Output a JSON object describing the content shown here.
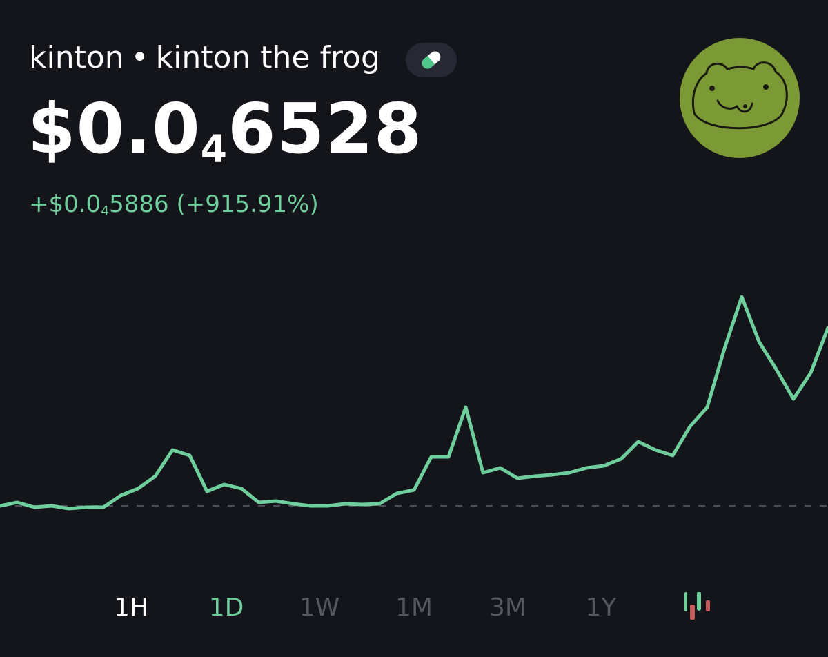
{
  "header": {
    "ticker": "kinton",
    "separator": "•",
    "name": "kinton the frog"
  },
  "price": {
    "prefix": "$0.0",
    "zeros": "4",
    "digits": "6528"
  },
  "change": {
    "prefix": "+$0.0",
    "zeros": "4",
    "digits": "5886",
    "percent": "(+915.91%)"
  },
  "chart_data": {
    "type": "line",
    "color": "#6fcf9c",
    "values": [
      6.42e-06,
      7.56e-06,
      5.96e-06,
      6.42e-06,
      5.51e-06,
      5.96e-06,
      5.96e-06,
      9.84e-06,
      1.212e-05,
      1.623e-05,
      2.49e-05,
      2.307e-05,
      1.121e-05,
      1.349e-05,
      1.212e-05,
      7.56e-06,
      8.02e-06,
      7.1e-06,
      6.42e-06,
      6.42e-06,
      7.1e-06,
      6.88e-06,
      7.1e-06,
      1.053e-05,
      1.167e-05,
      2.262e-05,
      2.262e-05,
      3.904e-05,
      1.737e-05,
      1.897e-05,
      1.554e-05,
      1.623e-05,
      1.669e-05,
      1.737e-05,
      1.897e-05,
      1.965e-05,
      2.193e-05,
      2.763e-05,
      2.49e-05,
      2.307e-05,
      3.265e-05,
      3.904e-05,
      5.843e-05,
      7.553e-05,
      6.071e-05,
      5.158e-05,
      4.177e-05,
      5.044e-05,
      6.528e-05
    ],
    "baseline": 6.42e-06,
    "ylim": [
      -8.86e-06,
      8.239e-05
    ]
  },
  "timeframes": [
    "1H",
    "1D",
    "1W",
    "1M",
    "3M",
    "1Y"
  ],
  "selected_timeframe": 1
}
